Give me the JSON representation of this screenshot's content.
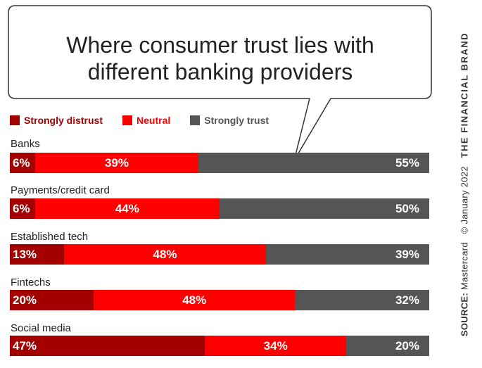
{
  "chart_data": {
    "type": "bar",
    "orientation": "horizontal",
    "stacked": true,
    "title": "Where consumer trust lies with different banking providers",
    "title_lines": [
      "Where consumer trust lies with",
      "different banking providers"
    ],
    "categories": [
      "Banks",
      "Payments/credit card",
      "Established tech",
      "Fintechs",
      "Social media"
    ],
    "series": [
      {
        "name": "Strongly distrust",
        "values": [
          6,
          6,
          13,
          20,
          47
        ],
        "labels": [
          "6%",
          "6%",
          "13%",
          "20%",
          "47%"
        ],
        "color": "#a30000"
      },
      {
        "name": "Neutral",
        "values": [
          39,
          44,
          48,
          48,
          34
        ],
        "labels": [
          "39%",
          "44%",
          "48%",
          "48%",
          "34%"
        ],
        "color": "#ff0000"
      },
      {
        "name": "Strongly trust",
        "values": [
          55,
          50,
          39,
          32,
          20
        ],
        "labels": [
          "55%",
          "50%",
          "39%",
          "32%",
          "20%"
        ],
        "color": "#555555"
      }
    ],
    "legend_position": "top-left",
    "grid": false
  },
  "source": {
    "label": "SOURCE:",
    "text": "Mastercard",
    "copyright": "© January 2022",
    "brand": "THE FINANCIAL BRAND"
  },
  "colors": {
    "distrust": "#a30000",
    "neutral": "#ff0000",
    "trust": "#555555",
    "text": "#222222"
  }
}
